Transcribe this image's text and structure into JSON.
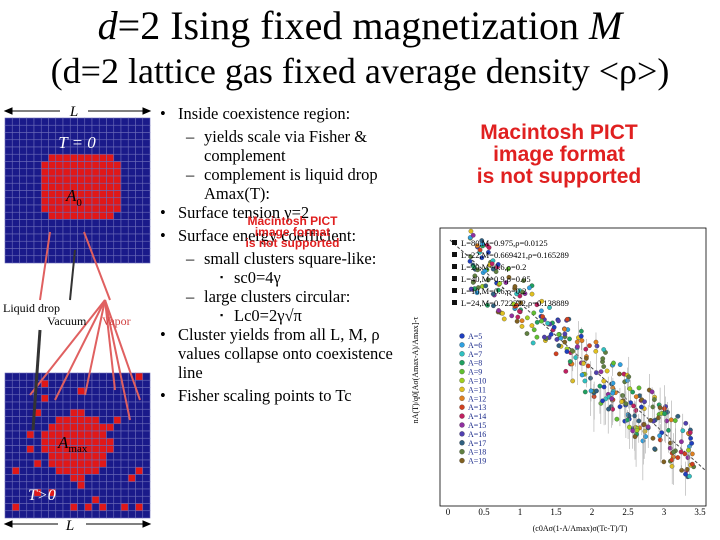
{
  "header": {
    "title_parts": [
      "d",
      "=2 Ising fixed magnetization ",
      "M"
    ],
    "subtitle": "(d=2 lattice gas fixed average density <ρ>)"
  },
  "lattice": {
    "top_L": "L",
    "t_zero": "T = 0",
    "a0": {
      "text": "A",
      "sub": "0"
    },
    "liquid_drop": "Liquid drop",
    "vacuum": "Vacuum",
    "vapor": "Vapor",
    "amax": {
      "text": "A",
      "sub": "max"
    },
    "t_pos": "T>0",
    "bottom_L": "L"
  },
  "bullets": [
    {
      "text": "Inside coexistence region:",
      "children": [
        {
          "text": "yields scale via Fisher & complement"
        },
        {
          "text": "complement is liquid drop Amax(T):"
        }
      ]
    },
    {
      "text": "Surface tension γ=2"
    },
    {
      "text": "Surface energy coefficient:",
      "children": [
        {
          "text": "small clusters square-like:",
          "children": [
            {
              "text": "sc0=4γ"
            }
          ]
        },
        {
          "text": "large clusters circular:",
          "children": [
            {
              "text": "Lc0=2γ√π"
            }
          ]
        }
      ]
    },
    {
      "text": "Cluster yields from all L, M, ρ values collapse onto coexistence line"
    },
    {
      "text": "Fisher scaling points to Tc"
    }
  ],
  "pict_large": [
    "Macintosh PICT",
    "image format",
    "is not supported"
  ],
  "pict_small": [
    "Macintosh PICT",
    "image format",
    "is not supported"
  ],
  "plot": {
    "y_label": "nA(T)/q0[Aσ(Amax-A)/Amax]-τ",
    "x_label": "(c0Aσ(1-A/Amax)σ(Tc-T)/T)",
    "x_ticks": [
      "0",
      "0.5",
      "1",
      "1.5",
      "2",
      "2.5",
      "3",
      "3.5"
    ],
    "legend_params": [
      "L=80,M=0.975,ρ=0.0125",
      "L=22,M=0.669421,ρ=0.165289",
      "L=20,M=0.6,ρ=0.2",
      "L=40,M=0.9,ρ=0.05",
      "L=10,M=0.6,ρ=0.2",
      "L=24,M=0.722222,ρ=0.138889"
    ],
    "legend_sizes": [
      "A=5",
      "A=6",
      "A=7",
      "A=8",
      "A=9",
      "A=10",
      "A=11",
      "A=12",
      "A=13",
      "A=14",
      "A=15",
      "A=16",
      "A=17",
      "A=18",
      "A=19"
    ],
    "size_colors": [
      "#1f3fbf",
      "#2fa0e0",
      "#30c0c0",
      "#20a060",
      "#60c030",
      "#a0d020",
      "#e0c020",
      "#e08020",
      "#d04020",
      "#c02060",
      "#9030a0",
      "#5040b0",
      "#306080",
      "#608040",
      "#806020"
    ]
  }
}
